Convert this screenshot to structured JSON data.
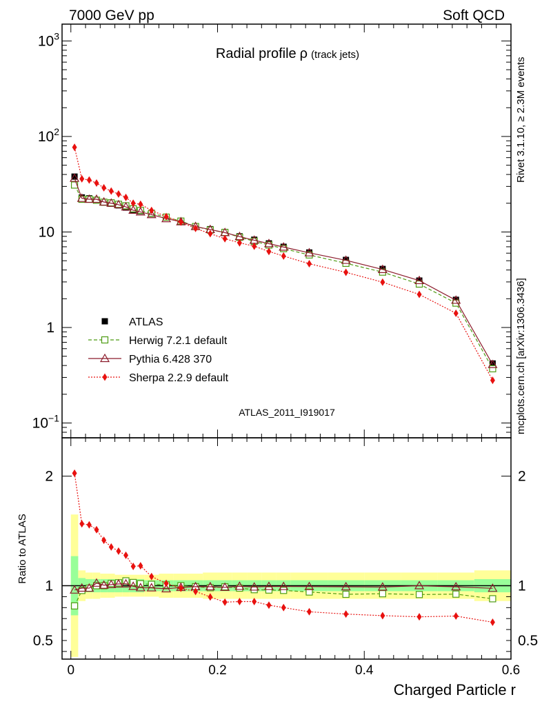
{
  "header": {
    "left": "7000 GeV pp",
    "right": "Soft QCD",
    "side_top": "Rivet 3.1.10, ≥ 2.3M events",
    "side_bottom": "mcplots.cern.ch [arXiv:1306.3436]",
    "watermark": "ATLAS_2011_I919017"
  },
  "chart_data": {
    "type": "line",
    "title": "Radial profile",
    "title_symbol": "ρ",
    "title_suffix": "(track jets)",
    "xlabel": "Charged Particle r",
    "ylabel_ratio": "Ratio to ATLAS",
    "xlim": [
      -0.012,
      0.6
    ],
    "ylim_main": [
      0.07,
      1500
    ],
    "yscale_main": "log",
    "ylim_ratio": [
      0.33,
      2.35
    ],
    "main_yticks": [
      {
        "v": 0.1,
        "b": "10",
        "e": "−1"
      },
      {
        "v": 1,
        "b": "1",
        "e": ""
      },
      {
        "v": 10,
        "b": "10",
        "e": ""
      },
      {
        "v": 100,
        "b": "10",
        "e": "2"
      },
      {
        "v": 1000,
        "b": "10",
        "e": "3"
      }
    ],
    "ratio_yticks": [
      {
        "v": 0.5,
        "label": "0.5"
      },
      {
        "v": 1,
        "label": "1"
      },
      {
        "v": 2,
        "label": "2"
      }
    ],
    "xticks": [
      {
        "v": 0,
        "label": "0"
      },
      {
        "v": 0.2,
        "label": "0.2"
      },
      {
        "v": 0.4,
        "label": "0.4"
      },
      {
        "v": 0.6,
        "label": "0.6"
      }
    ],
    "x": [
      0.005,
      0.015,
      0.025,
      0.035,
      0.045,
      0.055,
      0.065,
      0.075,
      0.085,
      0.095,
      0.11,
      0.13,
      0.15,
      0.17,
      0.19,
      0.21,
      0.23,
      0.25,
      0.27,
      0.29,
      0.325,
      0.375,
      0.425,
      0.475,
      0.525,
      0.575
    ],
    "band_edges": [
      0,
      0.01,
      0.02,
      0.03,
      0.04,
      0.05,
      0.06,
      0.07,
      0.08,
      0.09,
      0.1,
      0.12,
      0.14,
      0.16,
      0.18,
      0.2,
      0.22,
      0.24,
      0.26,
      0.28,
      0.3,
      0.35,
      0.4,
      0.45,
      0.5,
      0.55,
      0.6
    ],
    "band_stat": [
      0.27,
      0.07,
      0.06,
      0.06,
      0.06,
      0.06,
      0.06,
      0.06,
      0.06,
      0.06,
      0.05,
      0.05,
      0.05,
      0.05,
      0.05,
      0.05,
      0.05,
      0.05,
      0.05,
      0.05,
      0.05,
      0.05,
      0.05,
      0.05,
      0.05,
      0.06
    ],
    "band_total": [
      0.65,
      0.14,
      0.12,
      0.12,
      0.11,
      0.11,
      0.1,
      0.1,
      0.1,
      0.1,
      0.1,
      0.11,
      0.11,
      0.11,
      0.12,
      0.12,
      0.12,
      0.12,
      0.12,
      0.12,
      0.12,
      0.12,
      0.12,
      0.12,
      0.12,
      0.14
    ],
    "series": [
      {
        "name": "ATLAS",
        "color": "#000000",
        "marker": "square-filled",
        "values": [
          38,
          23,
          22.5,
          21.5,
          20.5,
          19.8,
          19,
          18,
          17,
          16.5,
          15.5,
          14.2,
          13,
          11.5,
          10.7,
          10,
          9,
          8.3,
          7.6,
          7,
          6.1,
          5.1,
          4.1,
          3.1,
          1.95,
          0.42
        ]
      },
      {
        "name": "Herwig 7.2.1 default",
        "color": "#4c9a10",
        "marker": "square-open",
        "dash": "5,3",
        "values": [
          31,
          22,
          22,
          21.5,
          20.5,
          20.2,
          19.5,
          18.8,
          17.5,
          16.8,
          15.7,
          14.3,
          13,
          11.4,
          10.5,
          9.9,
          8.8,
          8,
          7.3,
          6.7,
          5.75,
          4.7,
          3.8,
          2.85,
          1.8,
          0.37
        ]
      },
      {
        "name": "Pythia 6.428 370",
        "color": "#8b1a2a",
        "marker": "triangle-open",
        "dash": "",
        "values": [
          36.5,
          22.5,
          22,
          22,
          20.6,
          20,
          19.3,
          18.3,
          16.9,
          16.2,
          15.2,
          13.8,
          12.8,
          11.4,
          10.6,
          9.85,
          8.95,
          8.2,
          7.55,
          6.95,
          6.05,
          5.05,
          4.05,
          3.1,
          1.93,
          0.41
        ]
      },
      {
        "name": "Sherpa 2.2.9 default",
        "color": "#e8110f",
        "marker": "diamond-filled",
        "dash": "2,2",
        "values": [
          77,
          36,
          35,
          32.5,
          29,
          26.8,
          25,
          23,
          20,
          19.5,
          16.8,
          14.5,
          12.7,
          10.9,
          9.6,
          8.5,
          7.7,
          7.1,
          6.25,
          5.6,
          4.65,
          3.78,
          2.98,
          2.22,
          1.41,
          0.28
        ]
      }
    ],
    "legend_position": "lower-left"
  }
}
